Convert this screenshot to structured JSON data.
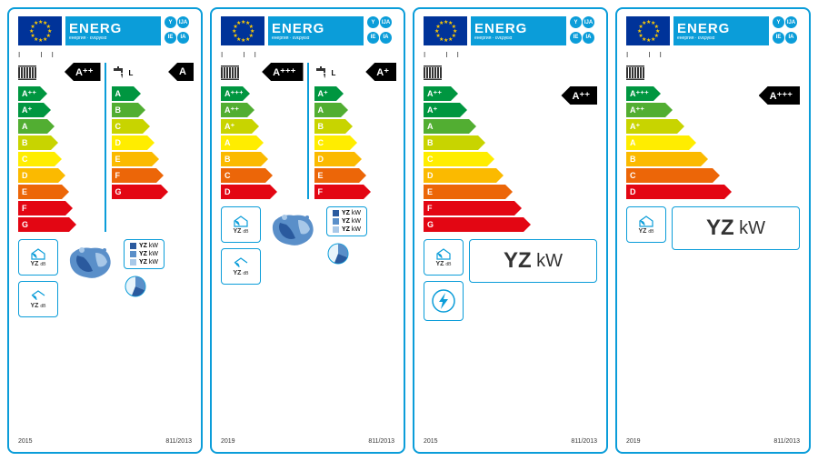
{
  "header": {
    "title": "ENERG",
    "subtitle": "енергия · ενεργεια",
    "codes": [
      "Y",
      "IJA",
      "IE",
      "IA"
    ]
  },
  "ii": "I          II",
  "tap_label": "L",
  "classes_space": {
    "A_pp": "A⁺⁺",
    "A_p": "A⁺",
    "A": "A",
    "B": "B",
    "C": "C",
    "D": "D",
    "E": "E",
    "F": "F",
    "G": "G",
    "A_ppp": "A⁺⁺⁺"
  },
  "colors": {
    "dark_green": "#009640",
    "green": "#52ae32",
    "lime": "#c8d400",
    "yellow": "#ffed00",
    "orange_y": "#fbba00",
    "orange": "#ec6608",
    "red": "#e30613",
    "blue": "#0b9dd9",
    "eu_blue": "#003399",
    "eu_gold": "#ffcc00",
    "map_dark": "#2a5a9e",
    "map_mid": "#5a8fc9",
    "map_light": "#a8c8e8"
  },
  "label1": {
    "col1": {
      "classes": [
        "A_pp",
        "A_p",
        "A",
        "B",
        "C",
        "D",
        "E",
        "F",
        "G"
      ],
      "rating": "A⁺⁺"
    },
    "col2": {
      "classes": [
        "A",
        "B",
        "C",
        "D",
        "E",
        "F",
        "G"
      ],
      "rating": "A"
    },
    "year": "2015",
    "reg": "811/2013"
  },
  "label2": {
    "col1": {
      "classes": [
        "A_ppp",
        "A_pp",
        "A_p",
        "A",
        "B",
        "C",
        "D"
      ],
      "rating": "A⁺⁺⁺"
    },
    "col2": {
      "classes": [
        "A_p",
        "A",
        "B",
        "C",
        "D",
        "E",
        "F"
      ],
      "rating": "A⁺"
    },
    "year": "2019",
    "reg": "811/2013"
  },
  "label3": {
    "classes": [
      "A_pp",
      "A_p",
      "A",
      "B",
      "C",
      "D",
      "E",
      "F",
      "G"
    ],
    "rating": "A⁺⁺",
    "year": "2015",
    "reg": "811/2013"
  },
  "label4": {
    "classes": [
      "A_ppp",
      "A_pp",
      "A_p",
      "A",
      "B",
      "C",
      "D"
    ],
    "rating": "A⁺⁺⁺",
    "year": "2019",
    "reg": "811/2013"
  },
  "sound": {
    "value": "YZ",
    "unit": "dB"
  },
  "kw": {
    "value": "YZ",
    "unit": "kW",
    "colors": [
      "#2a5a9e",
      "#5a8fc9",
      "#a8c8e8"
    ]
  },
  "big_kw": {
    "value": "YZ",
    "unit": "kW"
  },
  "bar_widths_9": [
    24,
    28,
    32,
    36,
    40,
    44,
    48,
    52,
    56
  ],
  "bar_widths_7": [
    24,
    29,
    34,
    39,
    44,
    49,
    54
  ],
  "bar_colors_9": [
    "dark_green",
    "dark_green",
    "green",
    "lime",
    "yellow",
    "orange_y",
    "orange",
    "red",
    "red"
  ],
  "bar_colors_7": [
    "dark_green",
    "green",
    "lime",
    "yellow",
    "orange_y",
    "orange",
    "red"
  ],
  "single_bar_widths_9": [
    30,
    40,
    50,
    60,
    70,
    80,
    90,
    100,
    110
  ],
  "single_bar_widths_7": [
    30,
    43,
    56,
    69,
    82,
    95,
    108
  ]
}
